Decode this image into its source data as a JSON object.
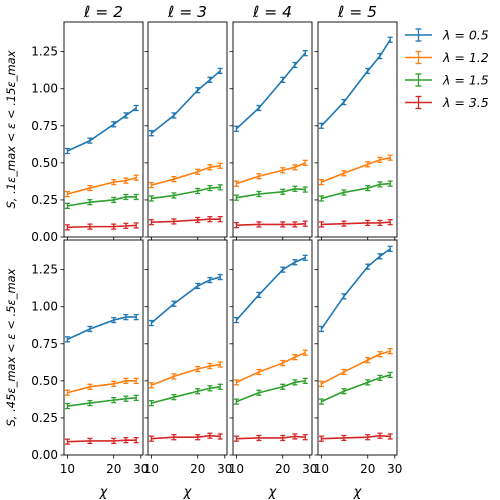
{
  "chart_data": {
    "type": "line",
    "layout": "2x4 grid of line charts with error bars",
    "x_scale": "log",
    "xlim": [
      9.5,
      31
    ],
    "x_ticks": [
      10,
      20,
      30
    ],
    "xlabel": "χ",
    "ylim": [
      0,
      1.45
    ],
    "y_ticks": [
      0.0,
      0.25,
      0.5,
      0.75,
      1.0,
      1.25
    ],
    "y_tick_labels": [
      "0.00",
      "0.25",
      "0.50",
      "0.75",
      "1.00",
      "1.25"
    ],
    "column_titles": [
      "ℓ = 2",
      "ℓ = 3",
      "ℓ = 4",
      "ℓ = 5"
    ],
    "row_ylabels": [
      "S, .1ε_max < ε < .15ε_max",
      "S, .45ε_max < ε < .5ε_max"
    ],
    "grid": false,
    "legend_position": "right, outside top",
    "legend": [
      {
        "label": "λ = 0.5",
        "color": "#1f77b4"
      },
      {
        "label": "λ = 1.2",
        "color": "#ff7f0e"
      },
      {
        "label": "λ = 1.5",
        "color": "#2ca02c"
      },
      {
        "label": "λ = 3.5",
        "color": "#d62728"
      }
    ],
    "x": [
      10,
      14,
      20,
      24,
      28
    ],
    "panels": [
      {
        "row": 0,
        "col": 0,
        "series": [
          {
            "lambda": "0.5",
            "values": [
              0.58,
              0.65,
              0.76,
              0.82,
              0.87
            ]
          },
          {
            "lambda": "1.2",
            "values": [
              0.29,
              0.33,
              0.37,
              0.38,
              0.4
            ]
          },
          {
            "lambda": "1.5",
            "values": [
              0.21,
              0.235,
              0.25,
              0.27,
              0.27
            ]
          },
          {
            "lambda": "3.5",
            "values": [
              0.065,
              0.07,
              0.07,
              0.075,
              0.078
            ]
          }
        ]
      },
      {
        "row": 0,
        "col": 1,
        "series": [
          {
            "lambda": "0.5",
            "values": [
              0.7,
              0.82,
              0.99,
              1.06,
              1.12
            ]
          },
          {
            "lambda": "1.2",
            "values": [
              0.35,
              0.39,
              0.44,
              0.47,
              0.48
            ]
          },
          {
            "lambda": "1.5",
            "values": [
              0.26,
              0.28,
              0.31,
              0.33,
              0.335
            ]
          },
          {
            "lambda": "3.5",
            "values": [
              0.1,
              0.105,
              0.115,
              0.12,
              0.12
            ]
          }
        ]
      },
      {
        "row": 0,
        "col": 2,
        "series": [
          {
            "lambda": "0.5",
            "values": [
              0.73,
              0.87,
              1.06,
              1.16,
              1.24
            ]
          },
          {
            "lambda": "1.2",
            "values": [
              0.36,
              0.41,
              0.45,
              0.47,
              0.5
            ]
          },
          {
            "lambda": "1.5",
            "values": [
              0.265,
              0.29,
              0.305,
              0.325,
              0.32
            ]
          },
          {
            "lambda": "3.5",
            "values": [
              0.08,
              0.085,
              0.085,
              0.085,
              0.09
            ]
          }
        ]
      },
      {
        "row": 0,
        "col": 3,
        "series": [
          {
            "lambda": "0.5",
            "values": [
              0.75,
              0.91,
              1.12,
              1.22,
              1.33
            ]
          },
          {
            "lambda": "1.2",
            "values": [
              0.37,
              0.43,
              0.49,
              0.52,
              0.535
            ]
          },
          {
            "lambda": "1.5",
            "values": [
              0.26,
              0.3,
              0.33,
              0.355,
              0.36
            ]
          },
          {
            "lambda": "3.5",
            "values": [
              0.085,
              0.09,
              0.095,
              0.095,
              0.1
            ]
          }
        ]
      },
      {
        "row": 1,
        "col": 0,
        "series": [
          {
            "lambda": "0.5",
            "values": [
              0.78,
              0.85,
              0.91,
              0.93,
              0.93
            ]
          },
          {
            "lambda": "1.2",
            "values": [
              0.42,
              0.46,
              0.48,
              0.5,
              0.5
            ]
          },
          {
            "lambda": "1.5",
            "values": [
              0.33,
              0.35,
              0.37,
              0.38,
              0.385
            ]
          },
          {
            "lambda": "3.5",
            "values": [
              0.09,
              0.095,
              0.095,
              0.1,
              0.1
            ]
          }
        ]
      },
      {
        "row": 1,
        "col": 1,
        "series": [
          {
            "lambda": "0.5",
            "values": [
              0.89,
              1.02,
              1.14,
              1.18,
              1.2
            ]
          },
          {
            "lambda": "1.2",
            "values": [
              0.47,
              0.53,
              0.58,
              0.6,
              0.61
            ]
          },
          {
            "lambda": "1.5",
            "values": [
              0.35,
              0.39,
              0.43,
              0.45,
              0.46
            ]
          },
          {
            "lambda": "3.5",
            "values": [
              0.11,
              0.12,
              0.12,
              0.13,
              0.125
            ]
          }
        ]
      },
      {
        "row": 1,
        "col": 2,
        "series": [
          {
            "lambda": "0.5",
            "values": [
              0.91,
              1.08,
              1.25,
              1.3,
              1.33
            ]
          },
          {
            "lambda": "1.2",
            "values": [
              0.49,
              0.56,
              0.62,
              0.66,
              0.69
            ]
          },
          {
            "lambda": "1.5",
            "values": [
              0.36,
              0.42,
              0.46,
              0.49,
              0.5
            ]
          },
          {
            "lambda": "3.5",
            "values": [
              0.11,
              0.115,
              0.115,
              0.125,
              0.12
            ]
          }
        ]
      },
      {
        "row": 1,
        "col": 3,
        "series": [
          {
            "lambda": "0.5",
            "values": [
              0.85,
              1.07,
              1.27,
              1.34,
              1.39
            ]
          },
          {
            "lambda": "1.2",
            "values": [
              0.48,
              0.56,
              0.64,
              0.68,
              0.7
            ]
          },
          {
            "lambda": "1.5",
            "values": [
              0.36,
              0.43,
              0.49,
              0.52,
              0.54
            ]
          },
          {
            "lambda": "3.5",
            "values": [
              0.11,
              0.115,
              0.12,
              0.13,
              0.125
            ]
          }
        ]
      }
    ]
  }
}
